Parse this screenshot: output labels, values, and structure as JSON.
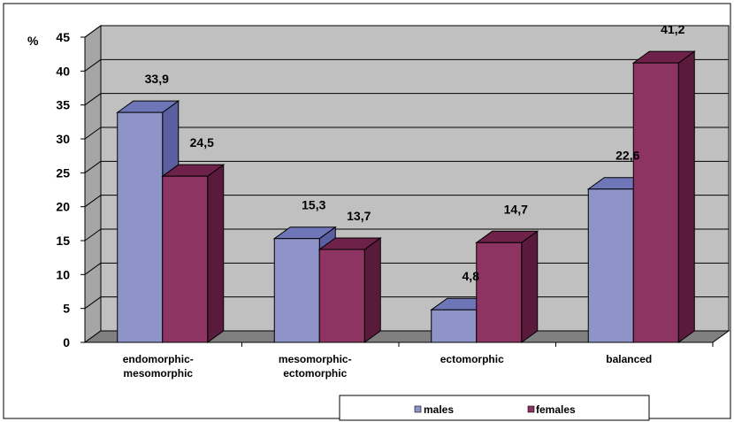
{
  "chart_data": {
    "type": "bar",
    "title": "",
    "ylabel": "%",
    "xlabel": "",
    "ylim": [
      0,
      45
    ],
    "yticks": [
      0,
      5,
      10,
      15,
      20,
      25,
      30,
      35,
      40,
      45
    ],
    "categories": [
      [
        "endomorphic-",
        "mesomorphic"
      ],
      [
        "mesomorphic-",
        "ectomorphic"
      ],
      [
        "ectomorphic"
      ],
      [
        "balanced"
      ]
    ],
    "series": [
      {
        "name": "males",
        "values": [
          33.9,
          15.3,
          4.8,
          22.6
        ],
        "labels": [
          "33,9",
          "15,3",
          "4,8",
          "22,6"
        ]
      },
      {
        "name": "females",
        "values": [
          24.5,
          13.7,
          14.7,
          41.2
        ],
        "labels": [
          "24,5",
          "13,7",
          "14,7",
          "41,2"
        ]
      }
    ],
    "grid": true,
    "legend": "bottom",
    "colors": {
      "males": "#8e94c8",
      "males_top": "#6f76b7",
      "males_side": "#5a5fa0",
      "females": "#8e3463",
      "females_top": "#6e2149",
      "females_side": "#5a1a3c",
      "wall": "#c0c0c0",
      "floor": "#808080",
      "left_wall": "#a6a6a6"
    }
  }
}
